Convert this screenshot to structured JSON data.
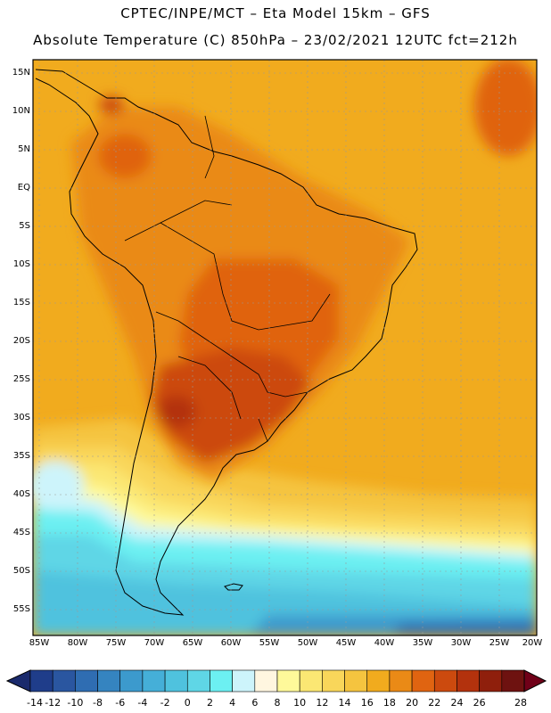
{
  "header": {
    "line1": "CPTEC/INPE/MCT –  Eta Model 15km – GFS",
    "line2": "Absolute Temperature (C) 850hPa – 23/02/2021 12UTC fct=212h"
  },
  "map": {
    "lat_labels": [
      "15N",
      "10N",
      "5N",
      "EQ",
      "5S",
      "10S",
      "15S",
      "20S",
      "25S",
      "30S",
      "35S",
      "40S",
      "45S",
      "50S",
      "55S"
    ],
    "lon_labels": [
      "85W",
      "80W",
      "75W",
      "70W",
      "65W",
      "60W",
      "55W",
      "50W",
      "45W",
      "40W",
      "35W",
      "30W",
      "25W",
      "20W"
    ],
    "region_note": "South America",
    "temperature_zones": [
      {
        "zone": "tropical-belt",
        "value": 18
      },
      {
        "zone": "central-brazil",
        "value": 20
      },
      {
        "zone": "paraguay-argentina-hotspot",
        "value": 22
      },
      {
        "zone": "patagonia",
        "value": 8
      },
      {
        "zone": "southern-ocean",
        "value": 2
      }
    ]
  },
  "colorbar": {
    "labels": [
      "-14",
      "-12",
      "-10",
      "-8",
      "-6",
      "-4",
      "-2",
      "0",
      "2",
      "4",
      "6",
      "8",
      "10",
      "12",
      "14",
      "16",
      "18",
      "20",
      "22",
      "24",
      "26",
      "28"
    ],
    "colors": [
      "#1f3d8a",
      "#2a56a0",
      "#2f6db2",
      "#3584c0",
      "#3c9acd",
      "#45afd8",
      "#4fc2de",
      "#5fd6e6",
      "#6cf0f2",
      "#cdf4fb",
      "#fff6e0",
      "#fef99a",
      "#fbe773",
      "#f9d65a",
      "#f5c43f",
      "#f1ab1e",
      "#ea8a16",
      "#e06411",
      "#cc4a0e",
      "#b3320d",
      "#8f1f0c",
      "#6e1210"
    ],
    "under_color": "#1a2a6c",
    "over_color": "#700018"
  }
}
